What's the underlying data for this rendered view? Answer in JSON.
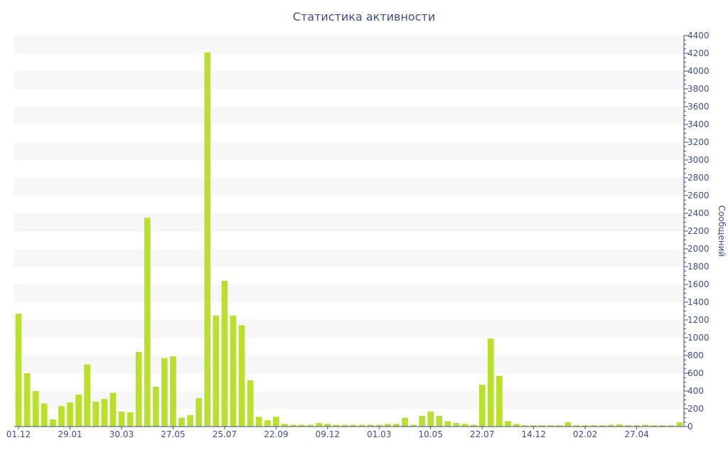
{
  "chart_data": {
    "type": "bar",
    "title": "Статистика активности",
    "xlabel": "",
    "ylabel": "Сообщений",
    "ylim": [
      0,
      4400
    ],
    "y_ticks": [
      0,
      200,
      400,
      600,
      800,
      1000,
      1200,
      1400,
      1600,
      1800,
      2000,
      2200,
      2400,
      2600,
      2800,
      3000,
      3200,
      3400,
      3600,
      3800,
      4000,
      4200,
      4400
    ],
    "x_tick_labels": [
      {
        "label": "01.12",
        "index": 0
      },
      {
        "label": "29.01",
        "index": 6
      },
      {
        "label": "30.03",
        "index": 12
      },
      {
        "label": "27.05",
        "index": 18
      },
      {
        "label": "25.07",
        "index": 24
      },
      {
        "label": "22.09",
        "index": 30
      },
      {
        "label": "09.12",
        "index": 36
      },
      {
        "label": "01.03",
        "index": 42
      },
      {
        "label": "10.05",
        "index": 48
      },
      {
        "label": "22.07",
        "index": 54
      },
      {
        "label": "14.12",
        "index": 60
      },
      {
        "label": "02.02",
        "index": 66
      },
      {
        "label": "27.04",
        "index": 72
      }
    ],
    "grid": "horizontal bands",
    "legend": "none",
    "bar_color": "#b9e02d",
    "band_color": "#f7f7f7",
    "text_color": "#3e4d8c",
    "values": [
      1270,
      600,
      400,
      260,
      80,
      230,
      270,
      360,
      700,
      280,
      310,
      380,
      170,
      160,
      840,
      2350,
      450,
      770,
      790,
      100,
      130,
      320,
      4210,
      1250,
      1640,
      1250,
      1140,
      520,
      110,
      70,
      110,
      30,
      20,
      20,
      20,
      40,
      30,
      20,
      20,
      20,
      20,
      20,
      20,
      30,
      30,
      100,
      20,
      120,
      170,
      120,
      60,
      40,
      30,
      20,
      470,
      990,
      570,
      60,
      30,
      15,
      15,
      15,
      15,
      15,
      50,
      15,
      15,
      15,
      15,
      20,
      25,
      15,
      15,
      20,
      15,
      15,
      15,
      50
    ]
  }
}
